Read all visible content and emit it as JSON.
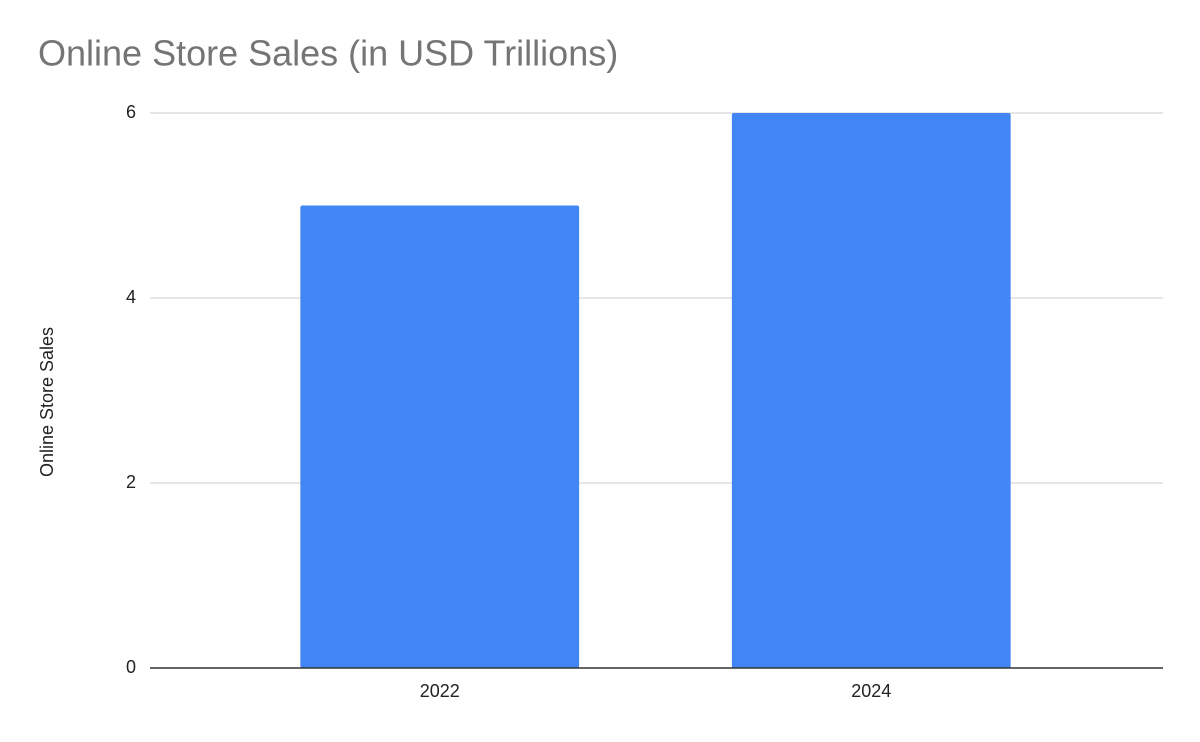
{
  "chart_data": {
    "type": "bar",
    "title": "Online Store Sales (in USD Trillions)",
    "y_label": "Online Store Sales",
    "categories": [
      "2022",
      "2024"
    ],
    "values": [
      5,
      6
    ],
    "color": "#4285f4",
    "ylim": [
      0,
      6
    ],
    "yticks": [
      0,
      2,
      4,
      6
    ],
    "grid": true
  }
}
